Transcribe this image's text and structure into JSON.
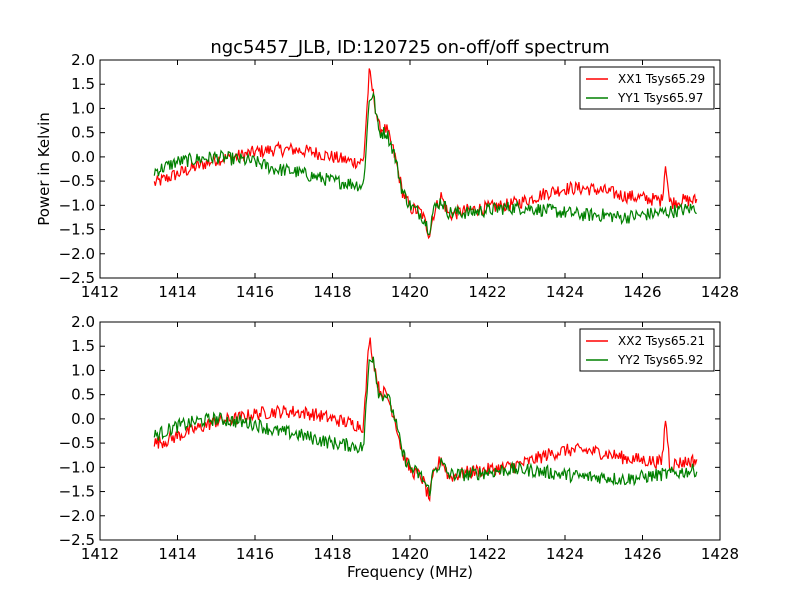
{
  "chart_data": {
    "title": "ngc5457_JLB, ID:120725 on-off/off spectrum",
    "xlabel": "Frequency (MHz)",
    "ylabel": "Power in Kelvin",
    "colors": {
      "red": "#ff0000",
      "green": "#008000"
    },
    "xlim": [
      1412,
      1428
    ],
    "ylim": [
      -2.5,
      2.0
    ],
    "xticks": [
      "1412",
      "1414",
      "1416",
      "1418",
      "1420",
      "1422",
      "1424",
      "1426",
      "1428"
    ],
    "yticks": [
      "2.0",
      "1.5",
      "1.0",
      "0.5",
      "0.0",
      "−0.5",
      "−1.0",
      "−1.5",
      "−2.0",
      "−2.5"
    ],
    "panels": [
      {
        "type": "line",
        "legend_position": "top-right",
        "series": [
          {
            "name": "XX1 Tsys65.29",
            "color": "red",
            "x": [
              1413.4,
              1413.7,
              1414.0,
              1414.5,
              1415.0,
              1415.5,
              1416.0,
              1416.5,
              1417.0,
              1417.5,
              1418.0,
              1418.5,
              1418.8,
              1418.95,
              1419.05,
              1419.2,
              1419.4,
              1419.6,
              1419.8,
              1420.0,
              1420.3,
              1420.5,
              1420.6,
              1420.8,
              1421.0,
              1421.5,
              1422.0,
              1422.5,
              1423.0,
              1423.5,
              1424.0,
              1424.5,
              1425.0,
              1425.5,
              1426.0,
              1426.5,
              1426.6,
              1426.7,
              1427.0,
              1427.4
            ],
            "y": [
              -0.55,
              -0.45,
              -0.35,
              -0.2,
              -0.05,
              0.0,
              0.1,
              0.15,
              0.15,
              0.1,
              0.0,
              -0.1,
              -0.1,
              1.75,
              1.3,
              0.6,
              0.55,
              0.05,
              -0.7,
              -1.05,
              -1.15,
              -1.6,
              -1.2,
              -0.8,
              -1.2,
              -1.1,
              -1.05,
              -1.0,
              -0.9,
              -0.75,
              -0.65,
              -0.65,
              -0.7,
              -0.8,
              -0.85,
              -0.9,
              -0.1,
              -0.95,
              -0.9,
              -0.9
            ]
          },
          {
            "name": "YY1 Tsys65.97",
            "color": "green",
            "x": [
              1413.4,
              1413.7,
              1414.0,
              1414.5,
              1415.0,
              1415.5,
              1416.0,
              1416.5,
              1417.0,
              1417.5,
              1418.0,
              1418.5,
              1418.8,
              1418.95,
              1419.05,
              1419.2,
              1419.4,
              1419.6,
              1419.8,
              1420.0,
              1420.3,
              1420.5,
              1420.6,
              1420.8,
              1421.0,
              1421.5,
              1422.0,
              1422.5,
              1423.0,
              1423.5,
              1424.0,
              1424.5,
              1425.0,
              1425.5,
              1426.0,
              1426.5,
              1427.0,
              1427.4
            ],
            "y": [
              -0.3,
              -0.2,
              -0.1,
              -0.05,
              0.0,
              -0.05,
              -0.1,
              -0.25,
              -0.3,
              -0.4,
              -0.5,
              -0.55,
              -0.6,
              1.2,
              1.3,
              0.5,
              0.5,
              0.05,
              -0.7,
              -1.0,
              -1.2,
              -1.5,
              -1.1,
              -0.9,
              -1.15,
              -1.15,
              -1.1,
              -1.05,
              -1.05,
              -1.1,
              -1.15,
              -1.2,
              -1.2,
              -1.25,
              -1.2,
              -1.15,
              -1.1,
              -1.05
            ]
          }
        ]
      },
      {
        "type": "line",
        "legend_position": "top-right",
        "series": [
          {
            "name": "XX2 Tsys65.21",
            "color": "red",
            "x": [
              1413.4,
              1413.7,
              1414.0,
              1414.5,
              1415.0,
              1415.5,
              1416.0,
              1416.5,
              1417.0,
              1417.5,
              1418.0,
              1418.5,
              1418.8,
              1418.95,
              1419.05,
              1419.2,
              1419.4,
              1419.6,
              1419.8,
              1420.0,
              1420.3,
              1420.5,
              1420.6,
              1420.8,
              1421.0,
              1421.5,
              1422.0,
              1422.5,
              1423.0,
              1423.5,
              1424.0,
              1424.5,
              1425.0,
              1425.5,
              1426.0,
              1426.5,
              1426.6,
              1426.7,
              1427.0,
              1427.4
            ],
            "y": [
              -0.5,
              -0.45,
              -0.35,
              -0.2,
              -0.05,
              0.0,
              0.1,
              0.15,
              0.15,
              0.1,
              0.0,
              -0.1,
              -0.15,
              1.7,
              1.25,
              0.6,
              0.5,
              0.05,
              -0.7,
              -1.05,
              -1.2,
              -1.65,
              -1.2,
              -0.8,
              -1.2,
              -1.1,
              -1.05,
              -1.0,
              -0.9,
              -0.75,
              -0.65,
              -0.65,
              -0.7,
              -0.8,
              -0.85,
              -0.9,
              0.05,
              -0.95,
              -0.9,
              -0.85
            ]
          },
          {
            "name": "YY2 Tsys65.92",
            "color": "green",
            "x": [
              1413.4,
              1413.7,
              1414.0,
              1414.5,
              1415.0,
              1415.5,
              1416.0,
              1416.5,
              1417.0,
              1417.5,
              1418.0,
              1418.5,
              1418.8,
              1418.95,
              1419.05,
              1419.2,
              1419.4,
              1419.6,
              1419.8,
              1420.0,
              1420.3,
              1420.5,
              1420.6,
              1420.8,
              1421.0,
              1421.5,
              1422.0,
              1422.5,
              1423.0,
              1423.5,
              1424.0,
              1424.5,
              1425.0,
              1425.5,
              1426.0,
              1426.5,
              1427.0,
              1427.4
            ],
            "y": [
              -0.35,
              -0.25,
              -0.15,
              -0.05,
              0.0,
              -0.05,
              -0.1,
              -0.25,
              -0.3,
              -0.4,
              -0.5,
              -0.55,
              -0.6,
              1.25,
              1.3,
              0.5,
              0.5,
              0.05,
              -0.7,
              -1.0,
              -1.2,
              -1.5,
              -1.1,
              -0.9,
              -1.15,
              -1.15,
              -1.1,
              -1.05,
              -1.05,
              -1.1,
              -1.15,
              -1.2,
              -1.2,
              -1.25,
              -1.2,
              -1.15,
              -1.1,
              -1.05
            ]
          }
        ]
      }
    ]
  }
}
